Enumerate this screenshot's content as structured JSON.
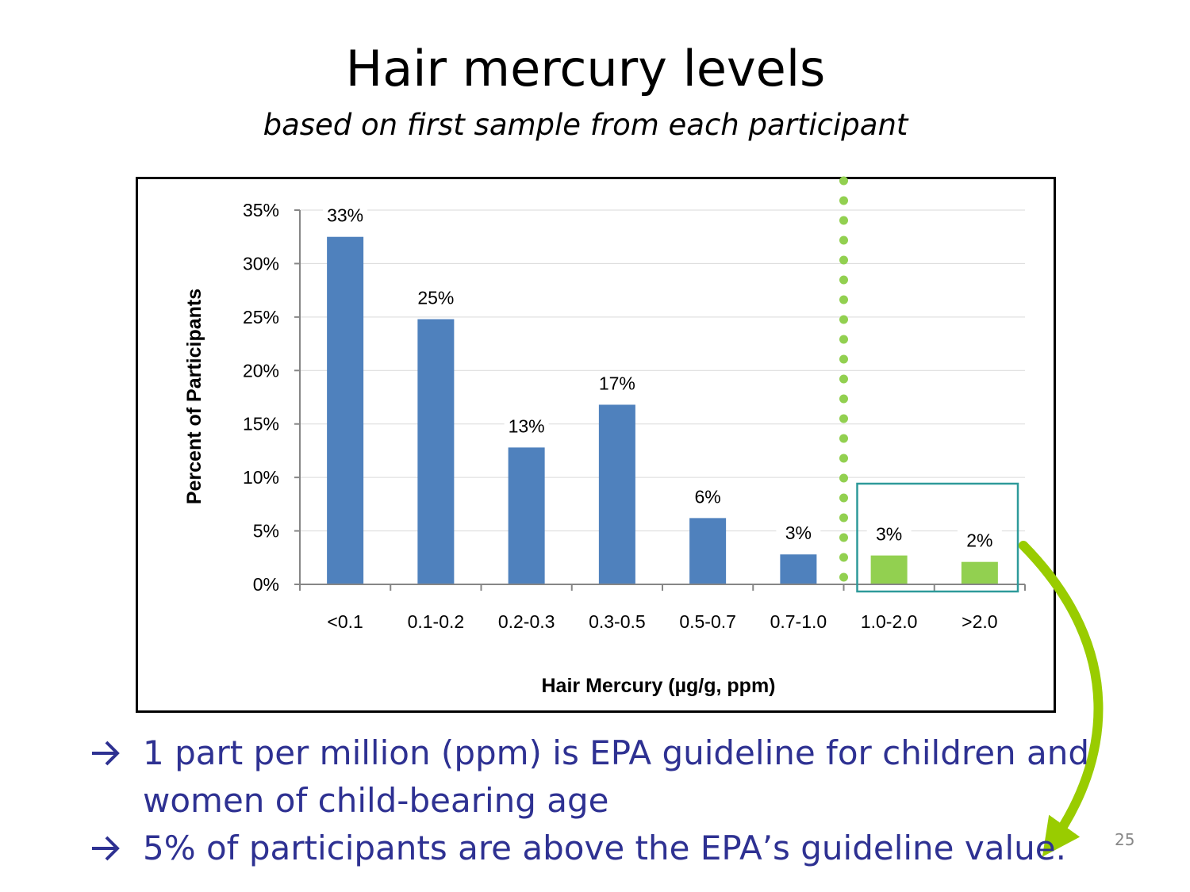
{
  "slide": {
    "title": "Hair mercury levels",
    "subtitle": "based on first sample from each participant",
    "page_number": "25",
    "bullets": [
      "1 part per million (ppm) is EPA guideline for children and women of child-bearing age",
      "5% of participants are above the EPA’s guideline value."
    ],
    "bullet_icon": "right-arrow-icon",
    "text_color": "#2E3192"
  },
  "chart_data": {
    "type": "bar",
    "categories": [
      "<0.1",
      "0.1-0.2",
      "0.2-0.3",
      "0.3-0.5",
      "0.5-0.7",
      "0.7-1.0",
      "1.0-2.0",
      ">2.0"
    ],
    "values": [
      32.5,
      24.8,
      12.8,
      16.8,
      6.2,
      2.8,
      2.7,
      2.1
    ],
    "data_labels": [
      "33%",
      "25%",
      "13%",
      "17%",
      "6%",
      "3%",
      "3%",
      "2%"
    ],
    "y_ticks": [
      "0%",
      "5%",
      "10%",
      "15%",
      "20%",
      "25%",
      "30%",
      "35%"
    ],
    "ylim": [
      0,
      35
    ],
    "xlabel": "Hair Mercury (µg/g, ppm)",
    "ylabel": "Percent of Participants",
    "grid": true,
    "colors": {
      "below_guideline": "#4F81BD",
      "above_guideline": "#92D050",
      "guideline_line": "#92D050",
      "highlight_box": "#2E9A9A",
      "callout_arrow": "#99CC00"
    },
    "guideline": {
      "position": "between 0.7-1.0 and 1.0-2.0",
      "style": "dotted"
    },
    "highlight_categories": [
      "1.0-2.0",
      ">2.0"
    ]
  }
}
